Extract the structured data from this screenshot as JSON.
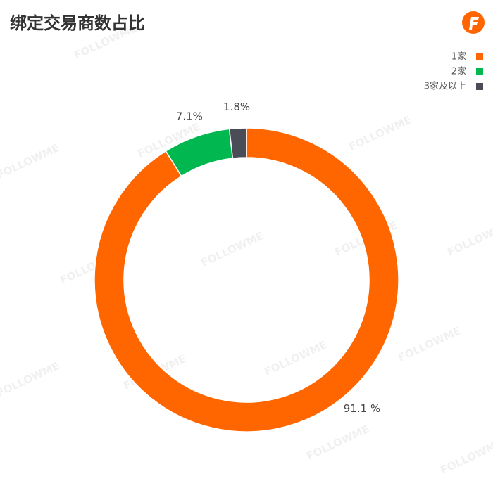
{
  "chart_data": {
    "type": "donut",
    "title": "绑定交易商数占比",
    "watermark": "FOLLOWME",
    "categories": [
      "1家",
      "2家",
      "3家及以上"
    ],
    "values": [
      91.1,
      7.1,
      1.8
    ],
    "value_labels": [
      "91.1 %",
      "7.1%",
      "1.8%"
    ],
    "colors": [
      "#ff6600",
      "#00b84f",
      "#4a4d55"
    ],
    "legend": "top-right"
  }
}
